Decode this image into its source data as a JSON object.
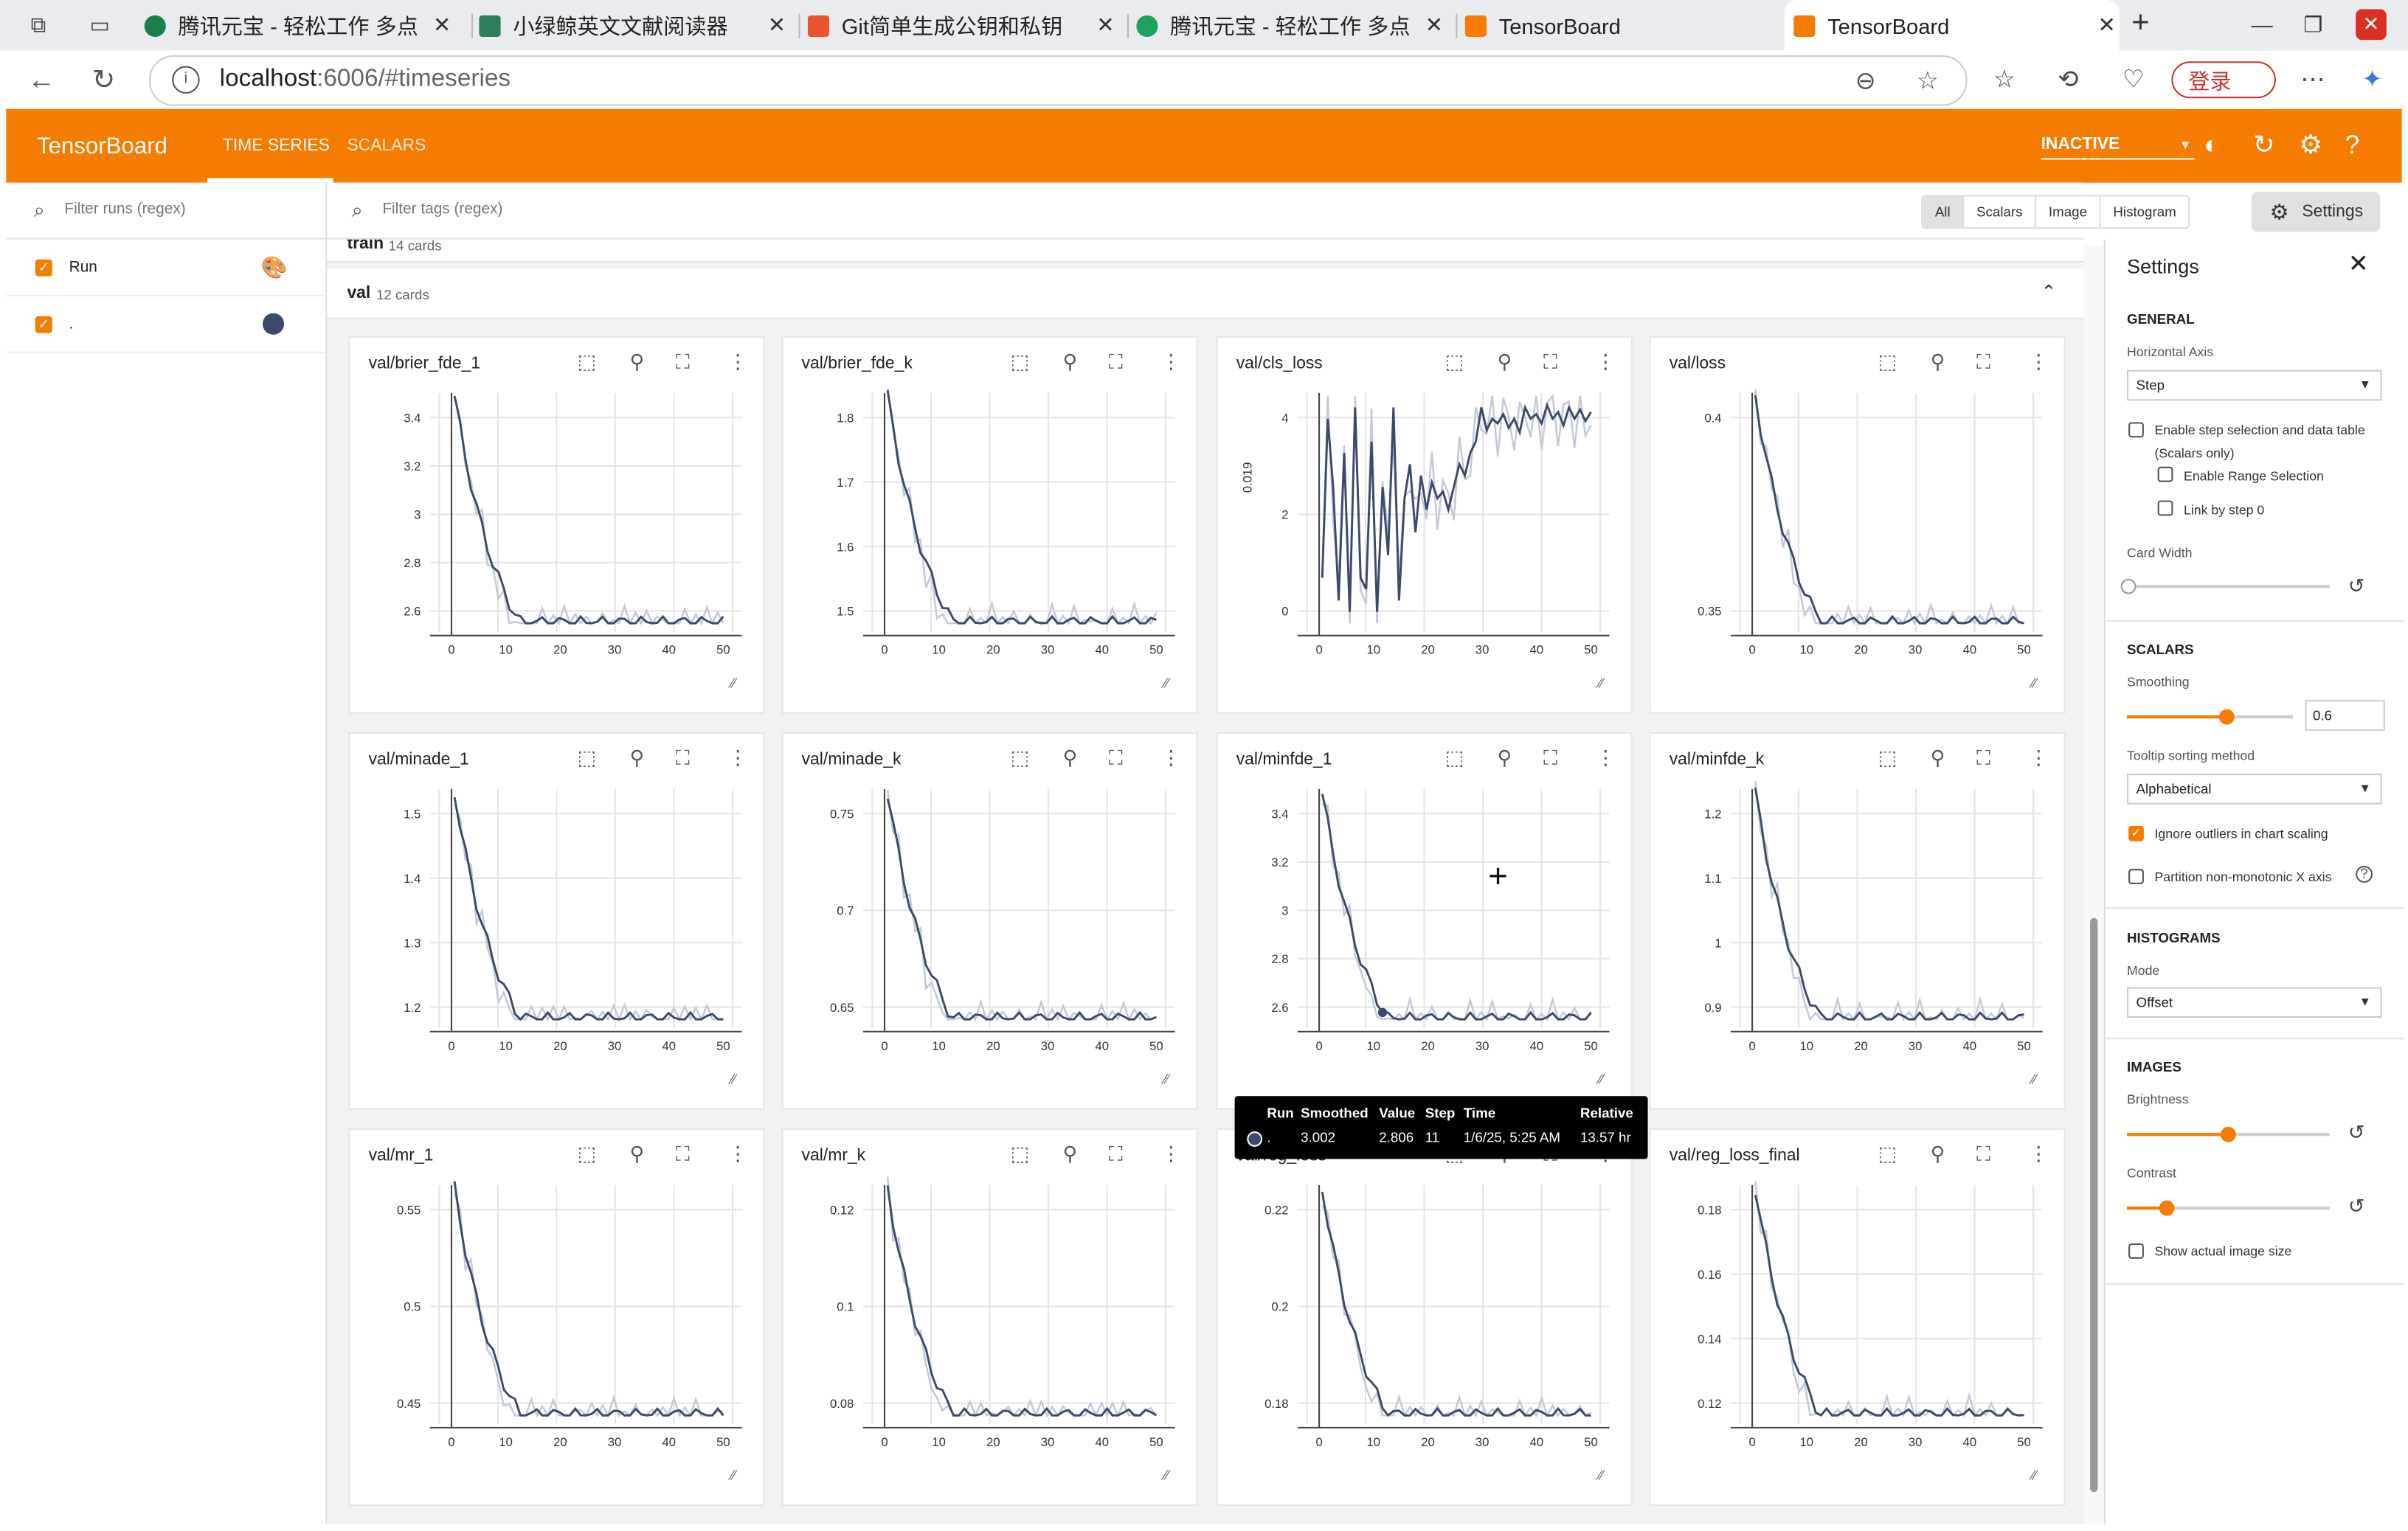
{
  "browser": {
    "tabs": [
      {
        "title": "腾讯元宝 - 轻松工作 多点",
        "favicon_color": "#1a7f4b"
      },
      {
        "title": "小绿鲸英文文献阅读器",
        "favicon_color": "#2e7d5b"
      },
      {
        "title": "Git简单生成公钥和私钥",
        "favicon_color": "#e8542e"
      },
      {
        "title": "腾讯元宝 - 轻松工作 多点",
        "favicon_color": "#1aa260"
      },
      {
        "title": "TensorBoard",
        "favicon_color": "#f57c00"
      },
      {
        "title": "TensorBoard",
        "favicon_color": "#f57c00",
        "active": true
      }
    ],
    "url_host": "localhost",
    "url_rest": ":6006/#timeseries",
    "login_label": "登录"
  },
  "app": {
    "brand": "TensorBoard",
    "nav": [
      "TIME SERIES",
      "SCALARS"
    ],
    "status": "INACTIVE"
  },
  "runs_pane": {
    "filter_placeholder": "Filter runs (regex)",
    "rows": [
      {
        "label": "Run",
        "checked": true
      },
      {
        "label": ".",
        "checked": true,
        "color": "#3b4a6b"
      }
    ]
  },
  "toolbar": {
    "filter_placeholder": "Filter tags (regex)",
    "types": [
      "All",
      "Scalars",
      "Image",
      "Histogram"
    ],
    "settings_label": "Settings"
  },
  "groups": [
    {
      "name": "train",
      "count": "14 cards"
    },
    {
      "name": "val",
      "count": "12 cards"
    }
  ],
  "cards": [
    {
      "title": "val/brier_fde_1",
      "yticks": [
        "3.4",
        "3.2",
        "3",
        "2.8",
        "2.6"
      ]
    },
    {
      "title": "val/brier_fde_k",
      "yticks": [
        "1.8",
        "1.7",
        "1.6",
        "1.5"
      ]
    },
    {
      "title": "val/cls_loss",
      "yticks": [
        "4",
        "2",
        "0"
      ],
      "ylabel": "0.019"
    },
    {
      "title": "val/loss",
      "yticks": [
        "0.4",
        "0.35"
      ]
    },
    {
      "title": "val/minade_1",
      "yticks": [
        "1.5",
        "1.4",
        "1.3",
        "1.2"
      ]
    },
    {
      "title": "val/minade_k",
      "yticks": [
        "0.75",
        "0.7",
        "0.65"
      ]
    },
    {
      "title": "val/minfde_1",
      "yticks": [
        "3.4",
        "3.2",
        "3",
        "2.8",
        "2.6"
      ]
    },
    {
      "title": "val/minfde_k",
      "yticks": [
        "1.2",
        "1.1",
        "1",
        "0.9"
      ]
    },
    {
      "title": "val/mr_1",
      "yticks": [
        "0.55",
        "0.5",
        "0.45"
      ]
    },
    {
      "title": "val/mr_k",
      "yticks": [
        "0.12",
        "0.1",
        "0.08"
      ]
    },
    {
      "title": "val/reg_loss",
      "yticks": [
        "0.22",
        "0.2",
        "0.18"
      ]
    },
    {
      "title": "val/reg_loss_final",
      "yticks": [
        "0.18",
        "0.16",
        "0.14",
        "0.12"
      ]
    }
  ],
  "xticks": [
    "0",
    "10",
    "20",
    "30",
    "40",
    "50"
  ],
  "tooltip": {
    "headers": [
      "Run",
      "Smoothed",
      "Value",
      "Step",
      "Time",
      "Relative"
    ],
    "row": [
      ".",
      "3.002",
      "2.806",
      "11",
      "1/6/25, 5:25 AM",
      "13.57 hr"
    ]
  },
  "settings": {
    "title": "Settings",
    "general": "GENERAL",
    "horizontal_axis_label": "Horizontal Axis",
    "horizontal_axis": "Step",
    "enable_step_selection": "Enable step selection and data table",
    "scalars_only": "(Scalars only)",
    "enable_range": "Enable Range Selection",
    "link_by_step": "Link by step 0",
    "card_width": "Card Width",
    "scalars": "SCALARS",
    "smoothing_label": "Smoothing",
    "smoothing": "0.6",
    "smoothing_fraction": 0.6,
    "tooltip_sort_label": "Tooltip sorting method",
    "tooltip_sort": "Alphabetical",
    "ignore_outliers": "Ignore outliers in chart scaling",
    "partition": "Partition non-monotonic X axis",
    "histograms": "HISTOGRAMS",
    "mode_label": "Mode",
    "mode": "Offset",
    "images": "IMAGES",
    "brightness": "Brightness",
    "brightness_fraction": 0.5,
    "contrast": "Contrast",
    "contrast_fraction": 0.2,
    "show_actual": "Show actual image size"
  },
  "colors": {
    "accent": "#f57c00",
    "series": "#3b4a6b",
    "series_raw": "#c3c9d8"
  }
}
